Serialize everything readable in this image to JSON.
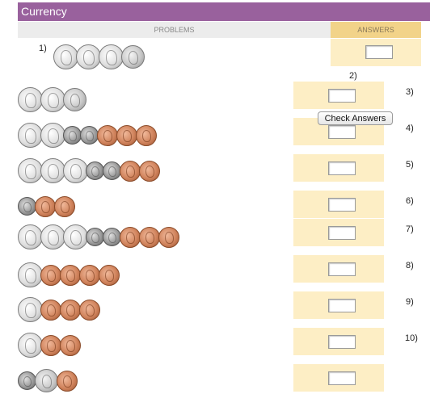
{
  "title": "Currency",
  "headers": {
    "problems": "PROBLEMS",
    "answers": "ANSWERS"
  },
  "check_button": "Check Answers",
  "problems": [
    {
      "number": "1)",
      "coins": [
        "quarter",
        "quarter",
        "quarter",
        "nickel"
      ]
    },
    {
      "number": "2)",
      "coins": [
        "quarter",
        "quarter",
        "nickel"
      ]
    },
    {
      "number": "3)",
      "coins": [
        "quarter",
        "quarter",
        "dime",
        "dime",
        "penny",
        "penny",
        "penny"
      ]
    },
    {
      "number": "4)",
      "coins": [
        "quarter",
        "quarter",
        "quarter",
        "dime",
        "dime",
        "penny",
        "penny"
      ]
    },
    {
      "number": "5)",
      "coins": [
        "dime",
        "penny",
        "penny"
      ]
    },
    {
      "number": "6)",
      "coins": [
        "quarter",
        "quarter",
        "quarter",
        "dime",
        "dime",
        "penny",
        "penny",
        "penny"
      ]
    },
    {
      "number": "7)",
      "coins": [
        "quarter",
        "penny",
        "penny",
        "penny",
        "penny"
      ]
    },
    {
      "number": "8)",
      "coins": [
        "quarter",
        "penny",
        "penny",
        "penny"
      ]
    },
    {
      "number": "9)",
      "coins": [
        "quarter",
        "penny",
        "penny"
      ]
    },
    {
      "number": "10)",
      "coins": [
        "dime",
        "nickel",
        "penny"
      ]
    }
  ],
  "coin_colors": {
    "quarter": "#d8d8d8",
    "nickel": "#c4c4c4",
    "dime": "#9a9a9a",
    "penny": "#d0835c"
  },
  "accent": {
    "titlebar": "#99619d",
    "answer_bg": "#fdeec5",
    "answer_header": "#f2d389"
  }
}
